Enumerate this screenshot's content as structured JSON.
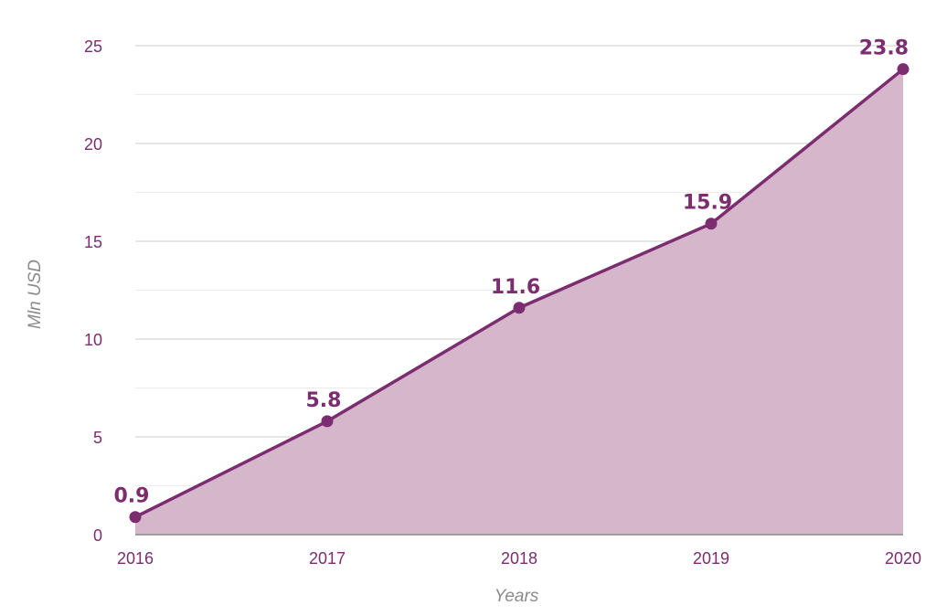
{
  "chart_data": {
    "type": "area",
    "title": "",
    "xlabel": "Years",
    "ylabel": "Mln USD",
    "categories": [
      "2016",
      "2017",
      "2018",
      "2019",
      "2020"
    ],
    "series": [
      {
        "values": [
          0.9,
          5.8,
          11.6,
          15.9,
          23.8
        ]
      }
    ],
    "data_labels": [
      "0.9",
      "5.8",
      "11.6",
      "15.9",
      "23.8"
    ],
    "ylim": [
      0,
      25
    ],
    "yticks": [
      0,
      5,
      10,
      15,
      20,
      25
    ],
    "minor_grid_step": 2.5,
    "grid": true,
    "legend": "none",
    "colors": {
      "line": "#7b2d6f",
      "fill": "#d6b6cb",
      "tick_text": "#7b2d6f",
      "axis_title": "#8a8a8a",
      "major_grid": "#cccccc",
      "minor_grid": "#ebebeb",
      "baseline": "#888888"
    }
  }
}
